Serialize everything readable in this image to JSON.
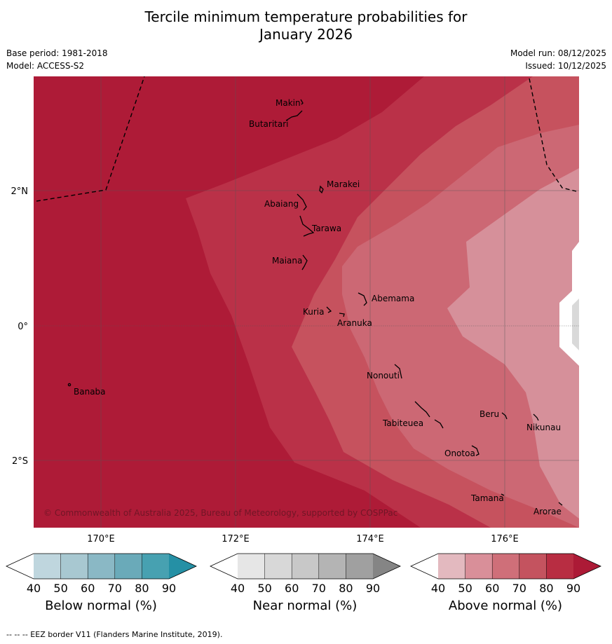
{
  "title": {
    "line1": "Tercile minimum temperature probabilities for",
    "line2": "January 2026"
  },
  "meta": {
    "base_period": "Base period: 1981-2018",
    "model": "Model: ACCESS-S2",
    "model_run": "Model run: 08/12/2025",
    "issued": "Issued: 10/12/2025"
  },
  "map": {
    "lat_labels": [
      "2°N",
      "0°",
      "2°S"
    ],
    "lon_labels": [
      "170°E",
      "172°E",
      "174°E",
      "176°E"
    ],
    "copyright": "© Commonwealth of Australia 2025, Bureau of Meteorology, supported by COSPPac",
    "islands": [
      "Makin",
      "Butaritari",
      "Marakei",
      "Abaiang",
      "Tarawa",
      "Maiana",
      "Abemama",
      "Kuria",
      "Aranuka",
      "Banaba",
      "Nonouti",
      "Beru",
      "Tabiteuea",
      "Nikunau",
      "Onotoa",
      "Tamana",
      "Arorae"
    ]
  },
  "colorbars": [
    {
      "label": "Below normal (%)",
      "ticks": [
        "40",
        "50",
        "60",
        "70",
        "80",
        "90"
      ],
      "colors": [
        "#ffffff",
        "#bfd6de",
        "#a8c8d1",
        "#8ab8c5",
        "#6aaab9",
        "#47a1b1",
        "#2590a5"
      ]
    },
    {
      "label": "Near normal (%)",
      "ticks": [
        "40",
        "50",
        "60",
        "70",
        "80",
        "90"
      ],
      "colors": [
        "#ffffff",
        "#e6e6e6",
        "#d8d8d8",
        "#c8c8c8",
        "#b4b4b4",
        "#a0a0a0",
        "#858585"
      ]
    },
    {
      "label": "Above normal (%)",
      "ticks": [
        "40",
        "50",
        "60",
        "70",
        "80",
        "90"
      ],
      "colors": [
        "#ffffff",
        "#e3b9bf",
        "#d98f99",
        "#cf6f79",
        "#c4535f",
        "#b82d42",
        "#ac1a36"
      ]
    }
  ],
  "footer": "--  --  -- EEZ border V11 (Flanders Marine Institute, 2019)."
}
